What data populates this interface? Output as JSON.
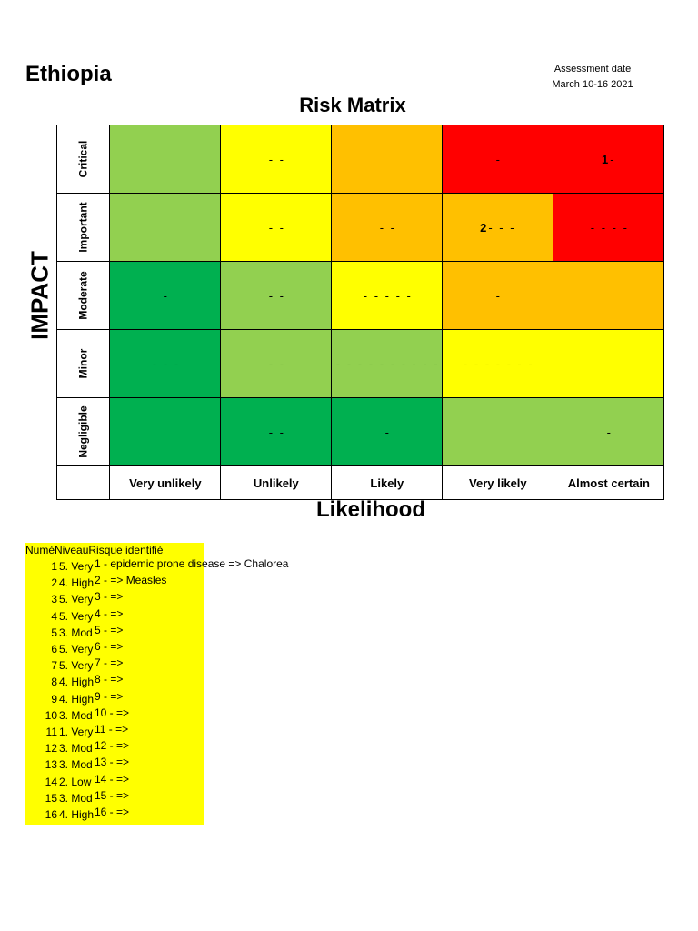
{
  "header": {
    "country": "Ethiopia",
    "assessment_label": "Assessment date",
    "assessment_date": "March 10-16 2021",
    "matrix_title": "Risk Matrix",
    "impact_label": "IMPACT",
    "likelihood_label": "Likelihood"
  },
  "matrix": {
    "impact_levels": [
      "Critical",
      "Important",
      "Moderate",
      "Minor",
      "Negligible"
    ],
    "likelihood_levels": [
      "Very unlikely",
      "Unlikely",
      "Likely",
      "Very likely",
      "Almost certain"
    ],
    "colors": {
      "g1": "#00b050",
      "g2": "#92d050",
      "y": "#ffff00",
      "o": "#ffc000",
      "r": "#ff0000"
    },
    "rows": [
      [
        {
          "num": "",
          "text": ""
        },
        {
          "num": "",
          "text": "- -"
        },
        {
          "num": "",
          "text": ""
        },
        {
          "num": "",
          "text": "-"
        },
        {
          "num": "1",
          "text": "-"
        }
      ],
      [
        {
          "num": "",
          "text": ""
        },
        {
          "num": "",
          "text": "- -"
        },
        {
          "num": "",
          "text": "- -"
        },
        {
          "num": "2",
          "text": "- - -"
        },
        {
          "num": "",
          "text": "- - - -"
        }
      ],
      [
        {
          "num": "",
          "text": "-"
        },
        {
          "num": "",
          "text": "- -"
        },
        {
          "num": "",
          "text": "- - - - -"
        },
        {
          "num": "",
          "text": "-"
        },
        {
          "num": "",
          "text": ""
        }
      ],
      [
        {
          "num": "",
          "text": "- - -"
        },
        {
          "num": "",
          "text": "- -"
        },
        {
          "num": "",
          "text": "- - - - - - - - - -"
        },
        {
          "num": "",
          "text": "- - - - - - -"
        },
        {
          "num": "",
          "text": ""
        }
      ],
      [
        {
          "num": "",
          "text": ""
        },
        {
          "num": "",
          "text": "- -"
        },
        {
          "num": "",
          "text": "-"
        },
        {
          "num": "",
          "text": ""
        },
        {
          "num": "",
          "text": "-"
        }
      ]
    ]
  },
  "risk_list": {
    "header": "NuméNiveauRisque identifié",
    "rows": [
      {
        "n": "1",
        "level": "5. Very",
        "risk": "1 - epidemic prone disease  => Chalorea"
      },
      {
        "n": "2",
        "level": "4. High",
        "risk": "2 -  => Measles"
      },
      {
        "n": "3",
        "level": "5. Very",
        "risk": "3 -  =>"
      },
      {
        "n": "4",
        "level": "5. Very",
        "risk": "4 -  =>"
      },
      {
        "n": "5",
        "level": "3. Mod",
        "risk": "5 -  =>"
      },
      {
        "n": "6",
        "level": "5. Very",
        "risk": "6 -  =>"
      },
      {
        "n": "7",
        "level": "5. Very",
        "risk": "7 -  =>"
      },
      {
        "n": "8",
        "level": "4. High",
        "risk": "8 -  =>"
      },
      {
        "n": "9",
        "level": "4. High",
        "risk": "9 -  =>"
      },
      {
        "n": "10",
        "level": "3. Mod",
        "risk": "10 -  =>"
      },
      {
        "n": "11",
        "level": "1. Very",
        "risk": "11 -  =>"
      },
      {
        "n": "12",
        "level": "3. Mod",
        "risk": "12 -  =>"
      },
      {
        "n": "13",
        "level": "3. Mod",
        "risk": "13 -  =>"
      },
      {
        "n": "14",
        "level": "2. Low",
        "risk": "14 -  =>"
      },
      {
        "n": "15",
        "level": "3. Mod",
        "risk": "15 -  =>"
      },
      {
        "n": "16",
        "level": "4. High",
        "risk": "16 -  =>"
      }
    ]
  }
}
